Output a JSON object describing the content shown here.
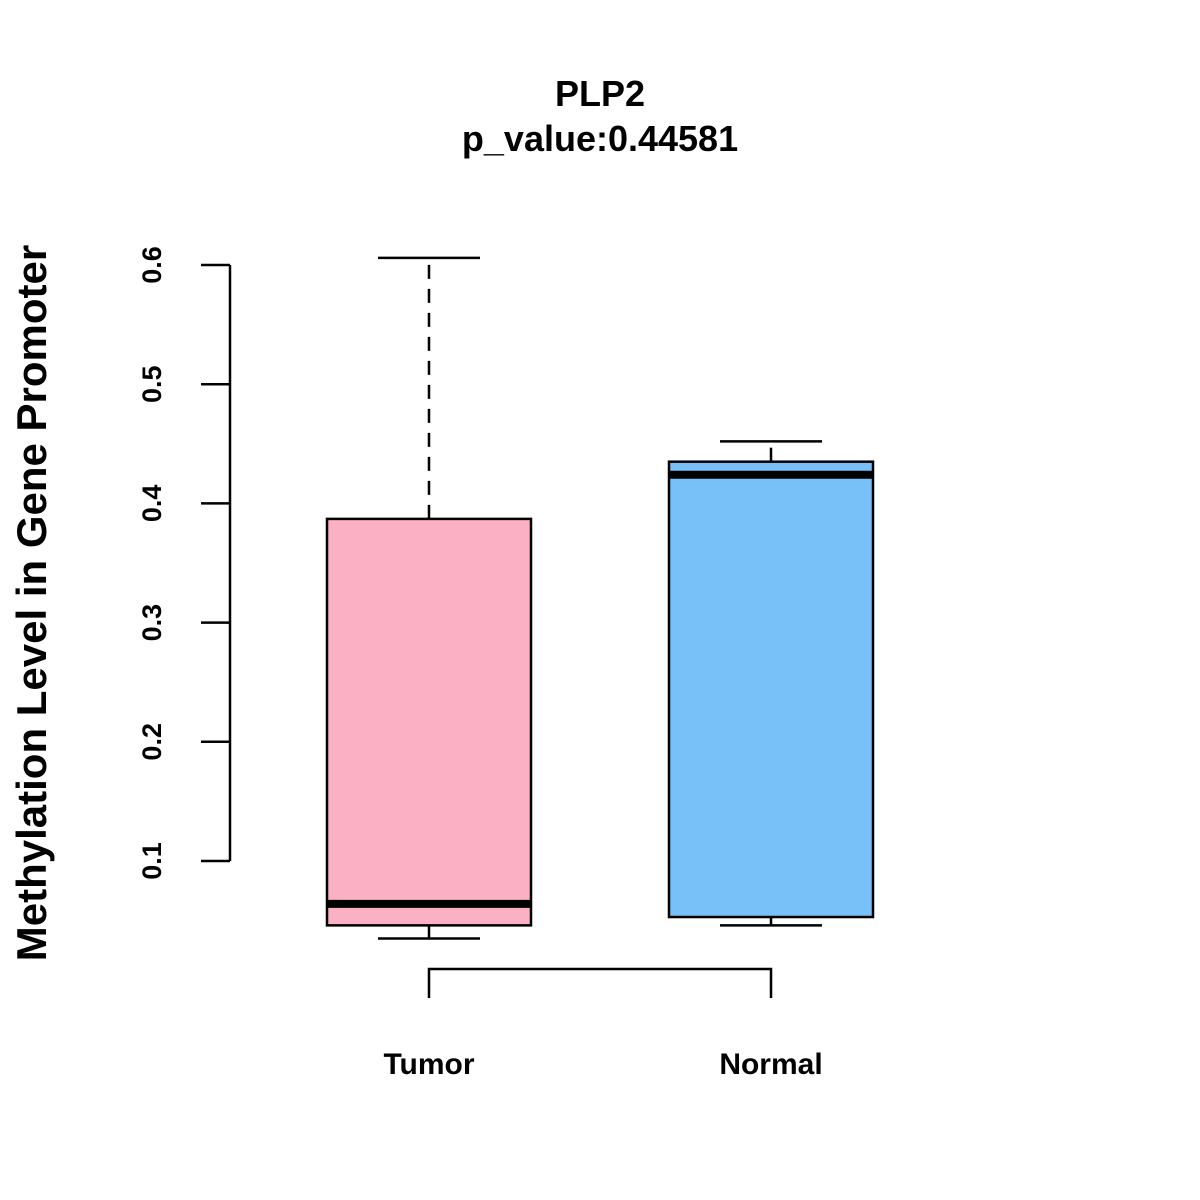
{
  "chart_data": {
    "type": "boxplot",
    "title": "PLP2",
    "subtitle": "p_value:0.44581",
    "xlabel": "",
    "ylabel": "Methylation Level in Gene Promoter",
    "ylim": [
      0.1,
      0.6
    ],
    "y_ticks": [
      "0.1",
      "0.2",
      "0.3",
      "0.4",
      "0.5",
      "0.6"
    ],
    "grid": false,
    "categories": [
      "Tumor",
      "Normal"
    ],
    "series": [
      {
        "category": "Tumor",
        "color": "#FBB1C3",
        "min": 0.035,
        "q1": 0.046,
        "median": 0.064,
        "q3": 0.387,
        "max": 0.606
      },
      {
        "category": "Normal",
        "color": "#77C1F8",
        "min": 0.046,
        "q1": 0.053,
        "median": 0.424,
        "q3": 0.435,
        "max": 0.452
      }
    ],
    "comparison_bracket": true
  }
}
